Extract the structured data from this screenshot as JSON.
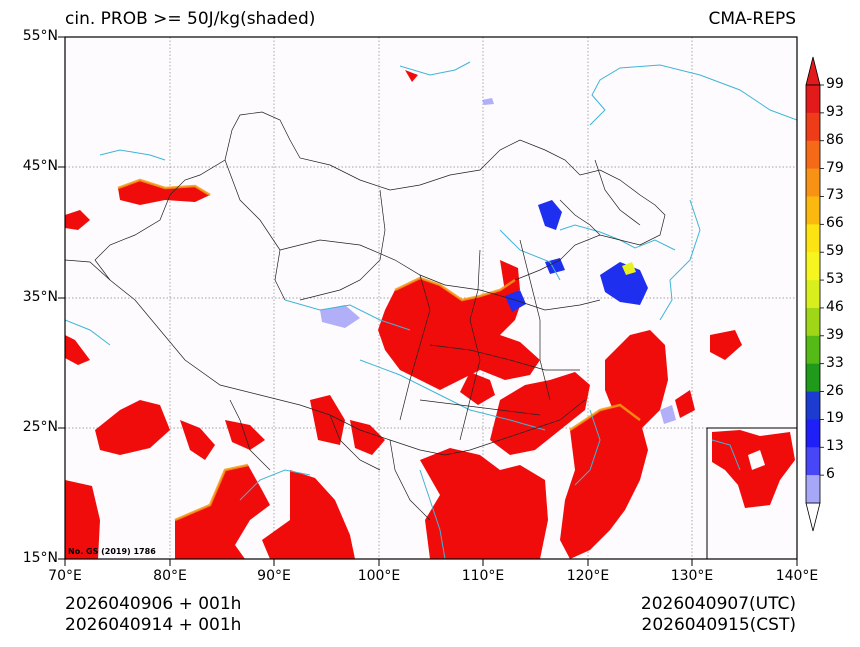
{
  "header": {
    "left_title": "cin. PROB >= 50J/kg(shaded)",
    "right_title": "CMA-REPS"
  },
  "axes": {
    "lat_ticks": [
      "55°N",
      "45°N",
      "35°N",
      "25°N",
      "15°N"
    ],
    "lon_ticks": [
      "70°E",
      "80°E",
      "90°E",
      "100°E",
      "110°E",
      "120°E",
      "130°E",
      "140°E"
    ]
  },
  "map_note": "No. GS (2019) 1786",
  "colorbar": {
    "labels": [
      "99",
      "93",
      "86",
      "79",
      "73",
      "66",
      "59",
      "53",
      "46",
      "39",
      "33",
      "26",
      "19",
      "13",
      "6"
    ],
    "colors": [
      "#e31a1c",
      "#ee3b18",
      "#f46a17",
      "#f89214",
      "#fbb90f",
      "#fde311",
      "#f7f51f",
      "#d9ef1d",
      "#9fd617",
      "#56ba16",
      "#1f9a1a",
      "#1c3bd1",
      "#1f1ff7",
      "#4747f7",
      "#a7a7f7"
    ]
  },
  "footer": {
    "init_utc": "2026040906  +  001h",
    "init_cst": "2026040914  +  001h",
    "valid_utc": "2026040907(UTC)",
    "valid_cst": "2026040915(CST)"
  }
}
